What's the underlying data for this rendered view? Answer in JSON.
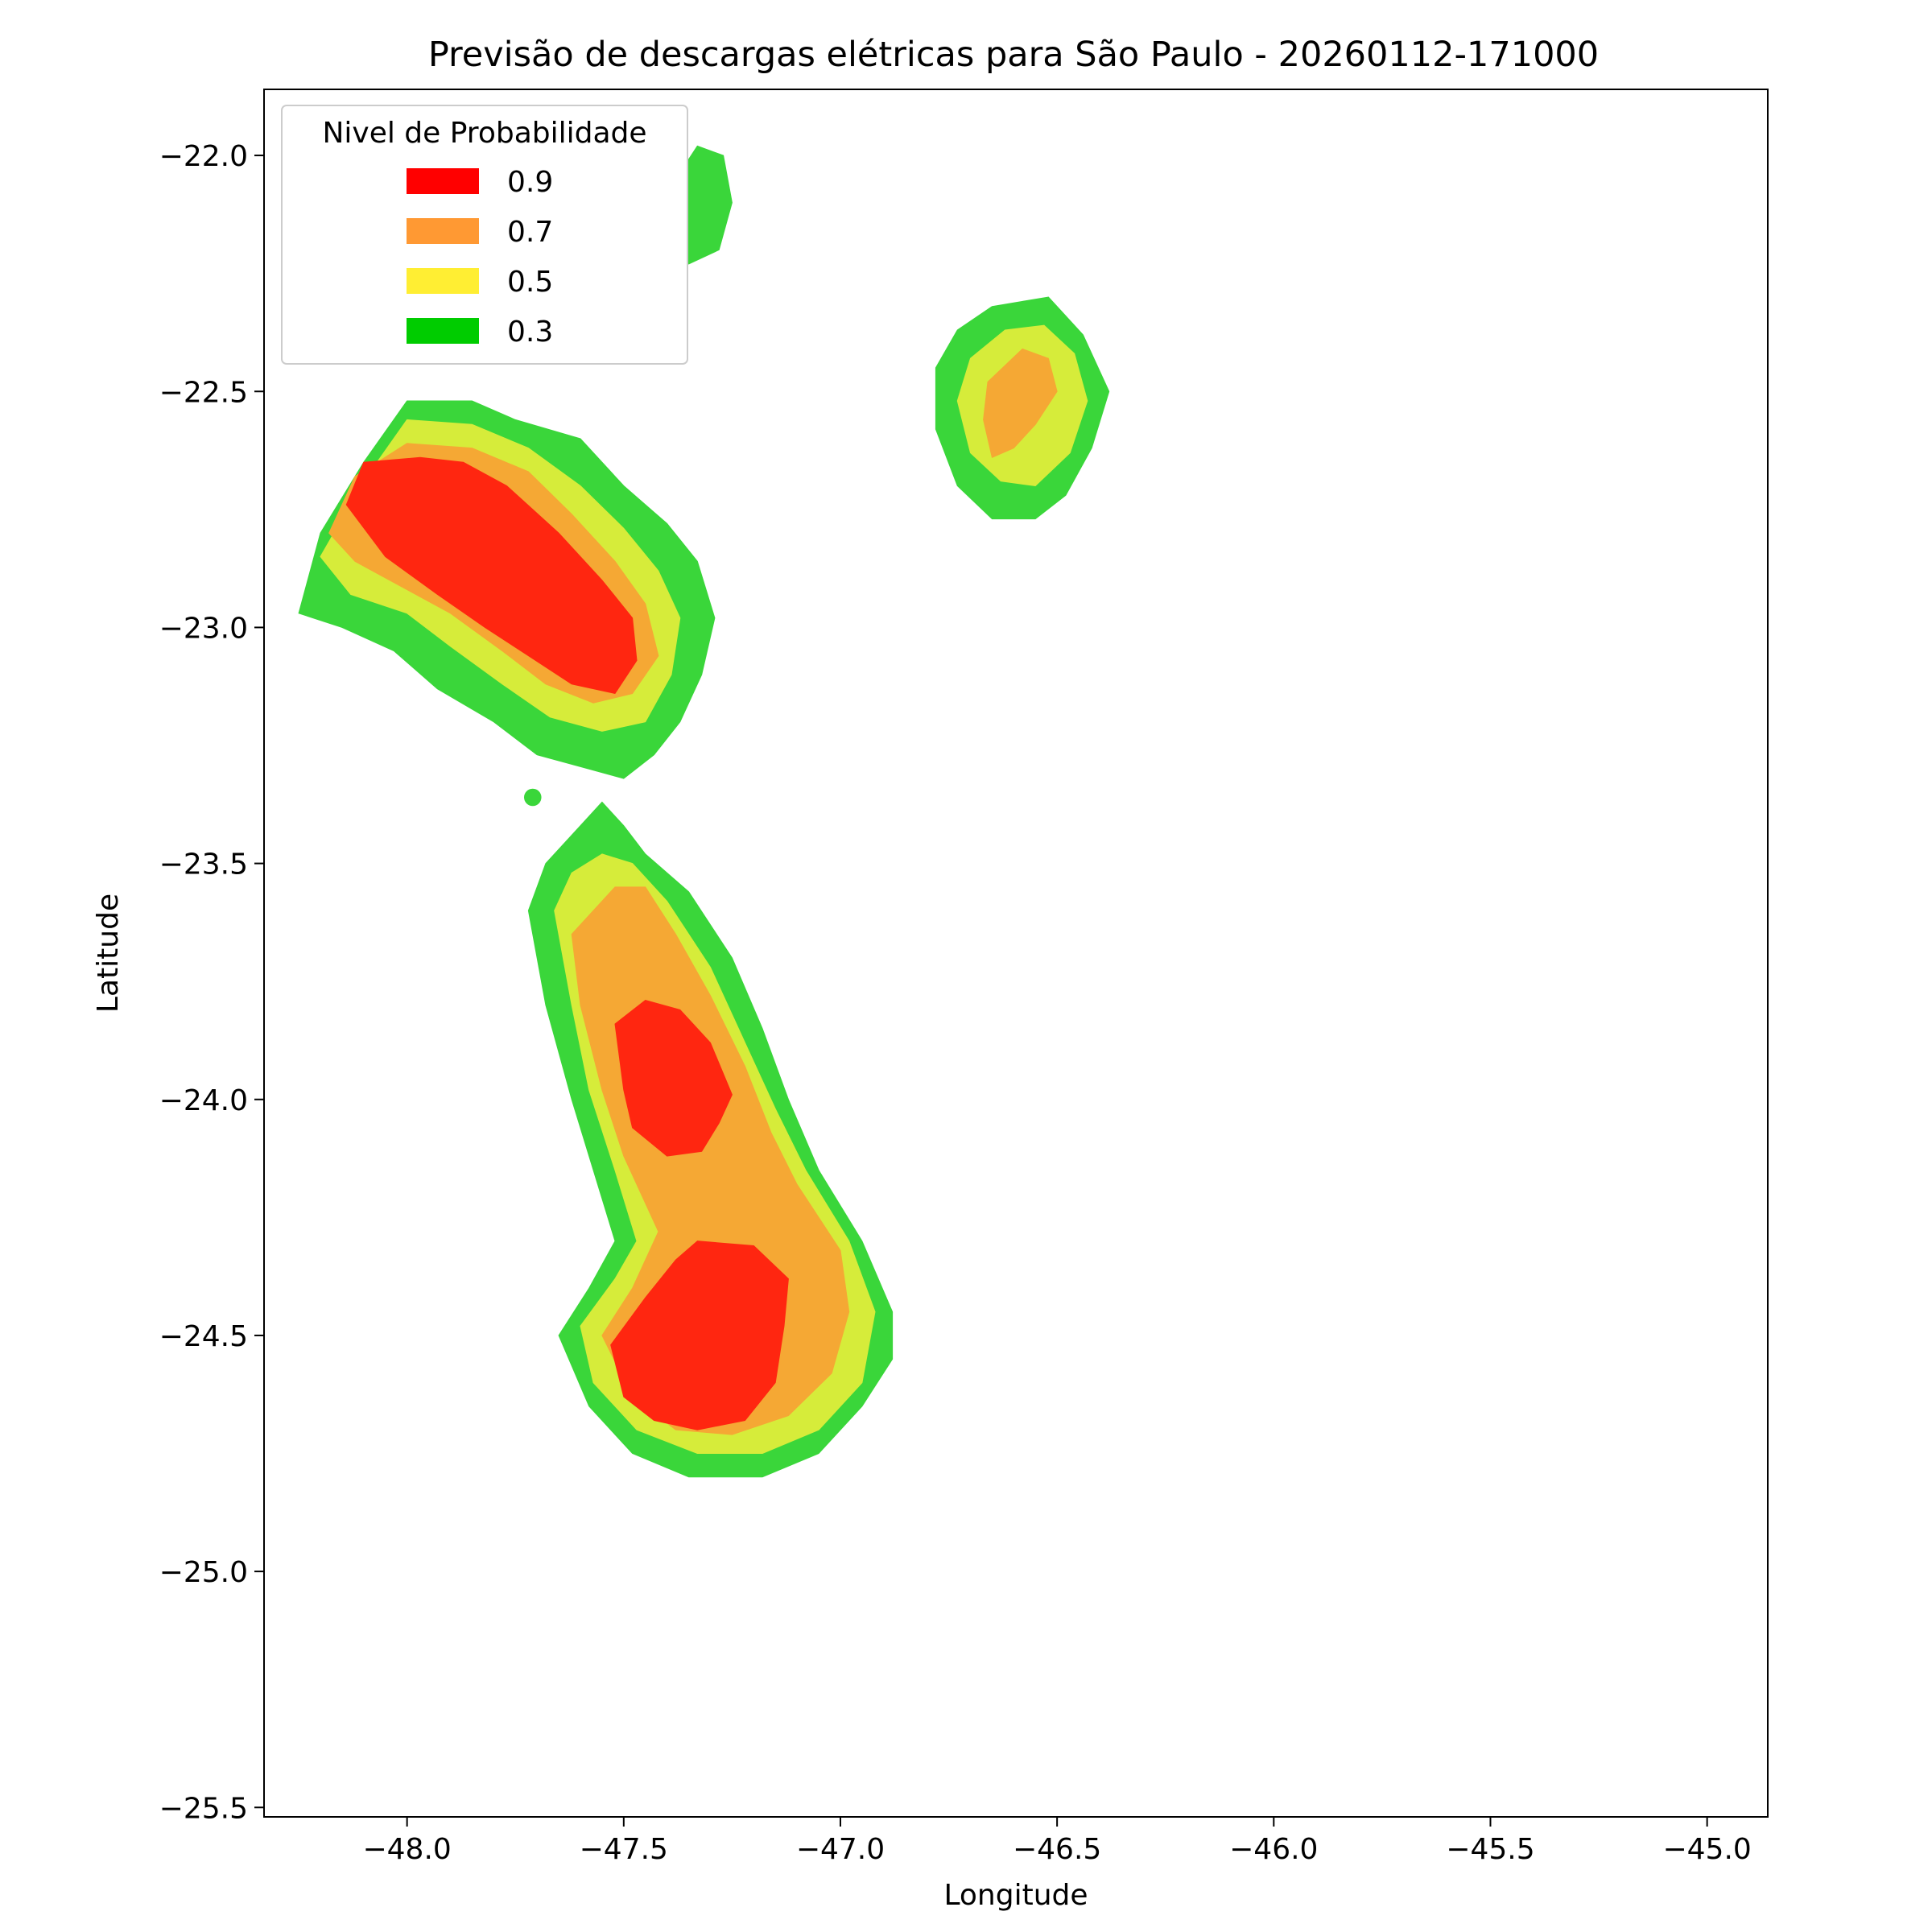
{
  "chart_data": {
    "type": "contourf",
    "title": "Previsão de descargas elétricas para São Paulo - 20260112-171000",
    "xlabel": "Longitude",
    "ylabel": "Latitude",
    "xlim": [
      -48.33,
      -44.86
    ],
    "ylim": [
      -25.52,
      -21.86
    ],
    "x_ticks": [
      -48.0,
      -47.5,
      -47.0,
      -46.5,
      -46.0,
      -45.5,
      -45.0
    ],
    "y_ticks": [
      -22.0,
      -22.5,
      -23.0,
      -23.5,
      -24.0,
      -24.5,
      -25.0,
      -25.5
    ],
    "x_tick_labels": [
      "−48.0",
      "−47.5",
      "−47.0",
      "−46.5",
      "−46.0",
      "−45.5",
      "−45.0"
    ],
    "y_tick_labels": [
      "−22.0",
      "−22.5",
      "−23.0",
      "−23.5",
      "−24.0",
      "−24.5",
      "−25.0",
      "−25.5"
    ],
    "grid": false,
    "legend": {
      "title": "Nivel de Probabilidade",
      "position": "upper-left",
      "entries": [
        {
          "label": "0.9",
          "color": "#ff0000"
        },
        {
          "label": "0.7",
          "color": "#ff9933"
        },
        {
          "label": "0.5",
          "color": "#ffee33"
        },
        {
          "label": "0.3",
          "color": "#00cc00"
        }
      ]
    },
    "level_colors": {
      "0.3": "#3ad63a",
      "0.5": "#d6ec3a",
      "0.7": "#f5a834",
      "0.9": "#ff2610",
      "faint": "#d3f5d3"
    },
    "regions": [
      {
        "name": "northwest-cell",
        "levels": [
          {
            "level": "0.3",
            "polygon": [
              [
                -48.25,
                -22.97
              ],
              [
                -48.2,
                -22.8
              ],
              [
                -48.1,
                -22.65
              ],
              [
                -48.0,
                -22.52
              ],
              [
                -47.85,
                -22.52
              ],
              [
                -47.75,
                -22.56
              ],
              [
                -47.6,
                -22.6
              ],
              [
                -47.5,
                -22.7
              ],
              [
                -47.4,
                -22.78
              ],
              [
                -47.33,
                -22.86
              ],
              [
                -47.29,
                -22.98
              ],
              [
                -47.32,
                -23.1
              ],
              [
                -47.37,
                -23.2
              ],
              [
                -47.43,
                -23.27
              ],
              [
                -47.5,
                -23.32
              ],
              [
                -47.58,
                -23.3
              ],
              [
                -47.7,
                -23.27
              ],
              [
                -47.8,
                -23.2
              ],
              [
                -47.93,
                -23.13
              ],
              [
                -48.03,
                -23.05
              ],
              [
                -48.15,
                -23.0
              ]
            ]
          },
          {
            "level": "0.5",
            "polygon": [
              [
                -48.2,
                -22.85
              ],
              [
                -48.1,
                -22.69
              ],
              [
                -48.0,
                -22.56
              ],
              [
                -47.85,
                -22.57
              ],
              [
                -47.72,
                -22.62
              ],
              [
                -47.6,
                -22.7
              ],
              [
                -47.5,
                -22.79
              ],
              [
                -47.42,
                -22.88
              ],
              [
                -47.37,
                -22.98
              ],
              [
                -47.39,
                -23.1
              ],
              [
                -47.45,
                -23.2
              ],
              [
                -47.55,
                -23.22
              ],
              [
                -47.67,
                -23.19
              ],
              [
                -47.78,
                -23.12
              ],
              [
                -47.9,
                -23.04
              ],
              [
                -48.0,
                -22.97
              ],
              [
                -48.13,
                -22.93
              ]
            ]
          },
          {
            "level": "0.7",
            "polygon": [
              [
                -48.18,
                -22.8
              ],
              [
                -48.12,
                -22.68
              ],
              [
                -48.0,
                -22.61
              ],
              [
                -47.85,
                -22.62
              ],
              [
                -47.72,
                -22.67
              ],
              [
                -47.62,
                -22.76
              ],
              [
                -47.52,
                -22.86
              ],
              [
                -47.45,
                -22.95
              ],
              [
                -47.42,
                -23.06
              ],
              [
                -47.48,
                -23.14
              ],
              [
                -47.57,
                -23.16
              ],
              [
                -47.68,
                -23.12
              ],
              [
                -47.78,
                -23.05
              ],
              [
                -47.9,
                -22.97
              ],
              [
                -48.02,
                -22.91
              ],
              [
                -48.12,
                -22.86
              ]
            ]
          },
          {
            "level": "0.9",
            "polygon": [
              [
                -48.14,
                -22.74
              ],
              [
                -48.1,
                -22.65
              ],
              [
                -47.97,
                -22.64
              ],
              [
                -47.87,
                -22.65
              ],
              [
                -47.77,
                -22.7
              ],
              [
                -47.65,
                -22.8
              ],
              [
                -47.55,
                -22.9
              ],
              [
                -47.48,
                -22.98
              ],
              [
                -47.47,
                -23.07
              ],
              [
                -47.52,
                -23.14
              ],
              [
                -47.62,
                -23.12
              ],
              [
                -47.72,
                -23.06
              ],
              [
                -47.82,
                -23.0
              ],
              [
                -47.93,
                -22.93
              ],
              [
                -48.05,
                -22.85
              ]
            ]
          }
        ]
      },
      {
        "name": "south-cell",
        "levels": [
          {
            "level": "0.3",
            "polygon": [
              [
                -47.6,
                -23.42
              ],
              [
                -47.55,
                -23.37
              ],
              [
                -47.5,
                -23.42
              ],
              [
                -47.45,
                -23.48
              ],
              [
                -47.35,
                -23.56
              ],
              [
                -47.25,
                -23.7
              ],
              [
                -47.18,
                -23.85
              ],
              [
                -47.12,
                -24.0
              ],
              [
                -47.05,
                -24.15
              ],
              [
                -46.95,
                -24.3
              ],
              [
                -46.88,
                -24.45
              ],
              [
                -46.88,
                -24.55
              ],
              [
                -46.95,
                -24.65
              ],
              [
                -47.05,
                -24.75
              ],
              [
                -47.18,
                -24.8
              ],
              [
                -47.35,
                -24.8
              ],
              [
                -47.48,
                -24.75
              ],
              [
                -47.58,
                -24.65
              ],
              [
                -47.65,
                -24.5
              ],
              [
                -47.58,
                -24.4
              ],
              [
                -47.52,
                -24.3
              ],
              [
                -47.57,
                -24.15
              ],
              [
                -47.62,
                -24.0
              ],
              [
                -47.68,
                -23.8
              ],
              [
                -47.72,
                -23.6
              ],
              [
                -47.68,
                -23.5
              ]
            ]
          },
          {
            "level": "0.5",
            "polygon": [
              [
                -47.55,
                -23.48
              ],
              [
                -47.48,
                -23.5
              ],
              [
                -47.4,
                -23.58
              ],
              [
                -47.3,
                -23.72
              ],
              [
                -47.22,
                -23.88
              ],
              [
                -47.15,
                -24.02
              ],
              [
                -47.08,
                -24.15
              ],
              [
                -46.98,
                -24.3
              ],
              [
                -46.92,
                -24.45
              ],
              [
                -46.95,
                -24.6
              ],
              [
                -47.05,
                -24.7
              ],
              [
                -47.18,
                -24.75
              ],
              [
                -47.33,
                -24.75
              ],
              [
                -47.47,
                -24.7
              ],
              [
                -47.57,
                -24.6
              ],
              [
                -47.6,
                -24.48
              ],
              [
                -47.52,
                -24.38
              ],
              [
                -47.47,
                -24.3
              ],
              [
                -47.52,
                -24.15
              ],
              [
                -47.58,
                -23.98
              ],
              [
                -47.62,
                -23.8
              ],
              [
                -47.66,
                -23.6
              ],
              [
                -47.62,
                -23.52
              ]
            ]
          },
          {
            "level": "0.7",
            "polygon": [
              [
                -47.52,
                -23.55
              ],
              [
                -47.45,
                -23.55
              ],
              [
                -47.38,
                -23.65
              ],
              [
                -47.3,
                -23.78
              ],
              [
                -47.22,
                -23.93
              ],
              [
                -47.16,
                -24.07
              ],
              [
                -47.1,
                -24.18
              ],
              [
                -47.0,
                -24.32
              ],
              [
                -46.98,
                -24.45
              ],
              [
                -47.02,
                -24.58
              ],
              [
                -47.12,
                -24.67
              ],
              [
                -47.25,
                -24.71
              ],
              [
                -47.38,
                -24.7
              ],
              [
                -47.48,
                -24.63
              ],
              [
                -47.55,
                -24.5
              ],
              [
                -47.48,
                -24.4
              ],
              [
                -47.42,
                -24.28
              ],
              [
                -47.5,
                -24.12
              ],
              [
                -47.55,
                -23.98
              ],
              [
                -47.6,
                -23.8
              ],
              [
                -47.62,
                -23.65
              ]
            ]
          },
          {
            "level": "0.9",
            "polygon": [
              [
                -47.52,
                -23.84
              ],
              [
                -47.45,
                -23.79
              ],
              [
                -47.37,
                -23.81
              ],
              [
                -47.3,
                -23.88
              ],
              [
                -47.25,
                -23.99
              ],
              [
                -47.28,
                -24.05
              ],
              [
                -47.32,
                -24.11
              ],
              [
                -47.4,
                -24.12
              ],
              [
                -47.48,
                -24.06
              ],
              [
                -47.5,
                -23.98
              ]
            ]
          },
          {
            "level": "0.9",
            "polygon": [
              [
                -47.33,
                -24.3
              ],
              [
                -47.38,
                -24.34
              ],
              [
                -47.45,
                -24.42
              ],
              [
                -47.53,
                -24.52
              ],
              [
                -47.5,
                -24.63
              ],
              [
                -47.43,
                -24.68
              ],
              [
                -47.33,
                -24.7
              ],
              [
                -47.22,
                -24.68
              ],
              [
                -47.15,
                -24.6
              ],
              [
                -47.13,
                -24.48
              ],
              [
                -47.12,
                -24.38
              ],
              [
                -47.2,
                -24.31
              ]
            ]
          }
        ]
      },
      {
        "name": "northeast-cell",
        "levels": [
          {
            "level": "0.3",
            "polygon": [
              [
                -46.65,
                -22.32
              ],
              [
                -46.52,
                -22.3
              ],
              [
                -46.44,
                -22.38
              ],
              [
                -46.38,
                -22.5
              ],
              [
                -46.42,
                -22.62
              ],
              [
                -46.48,
                -22.72
              ],
              [
                -46.55,
                -22.77
              ],
              [
                -46.65,
                -22.77
              ],
              [
                -46.73,
                -22.7
              ],
              [
                -46.78,
                -22.58
              ],
              [
                -46.78,
                -22.45
              ],
              [
                -46.73,
                -22.37
              ]
            ]
          },
          {
            "level": "0.5",
            "polygon": [
              [
                -46.62,
                -22.37
              ],
              [
                -46.53,
                -22.36
              ],
              [
                -46.46,
                -22.42
              ],
              [
                -46.43,
                -22.52
              ],
              [
                -46.47,
                -22.63
              ],
              [
                -46.55,
                -22.7
              ],
              [
                -46.63,
                -22.69
              ],
              [
                -46.7,
                -22.63
              ],
              [
                -46.73,
                -22.52
              ],
              [
                -46.7,
                -22.43
              ]
            ]
          },
          {
            "level": "0.7",
            "polygon": [
              [
                -46.58,
                -22.41
              ],
              [
                -46.52,
                -22.43
              ],
              [
                -46.5,
                -22.5
              ],
              [
                -46.55,
                -22.57
              ],
              [
                -46.6,
                -22.62
              ],
              [
                -46.65,
                -22.64
              ],
              [
                -46.67,
                -22.56
              ],
              [
                -46.66,
                -22.48
              ]
            ]
          }
        ]
      },
      {
        "name": "top-fragment",
        "levels": [
          {
            "level": "faint",
            "polygon": [
              [
                -47.48,
                -22.06
              ],
              [
                -47.38,
                -22.02
              ],
              [
                -47.32,
                -22.08
              ],
              [
                -47.3,
                -22.18
              ],
              [
                -47.38,
                -22.24
              ],
              [
                -47.45,
                -22.2
              ]
            ]
          },
          {
            "level": "0.3",
            "polygon": [
              [
                -47.33,
                -21.98
              ],
              [
                -47.27,
                -22.0
              ],
              [
                -47.25,
                -22.1
              ],
              [
                -47.28,
                -22.2
              ],
              [
                -47.35,
                -22.23
              ],
              [
                -47.38,
                -22.15
              ],
              [
                -47.38,
                -22.05
              ]
            ]
          }
        ]
      },
      {
        "name": "small-dot",
        "levels": [
          {
            "level": "0.3",
            "circle": [
              -47.71,
              -23.36,
              0.02
            ]
          }
        ]
      }
    ]
  }
}
